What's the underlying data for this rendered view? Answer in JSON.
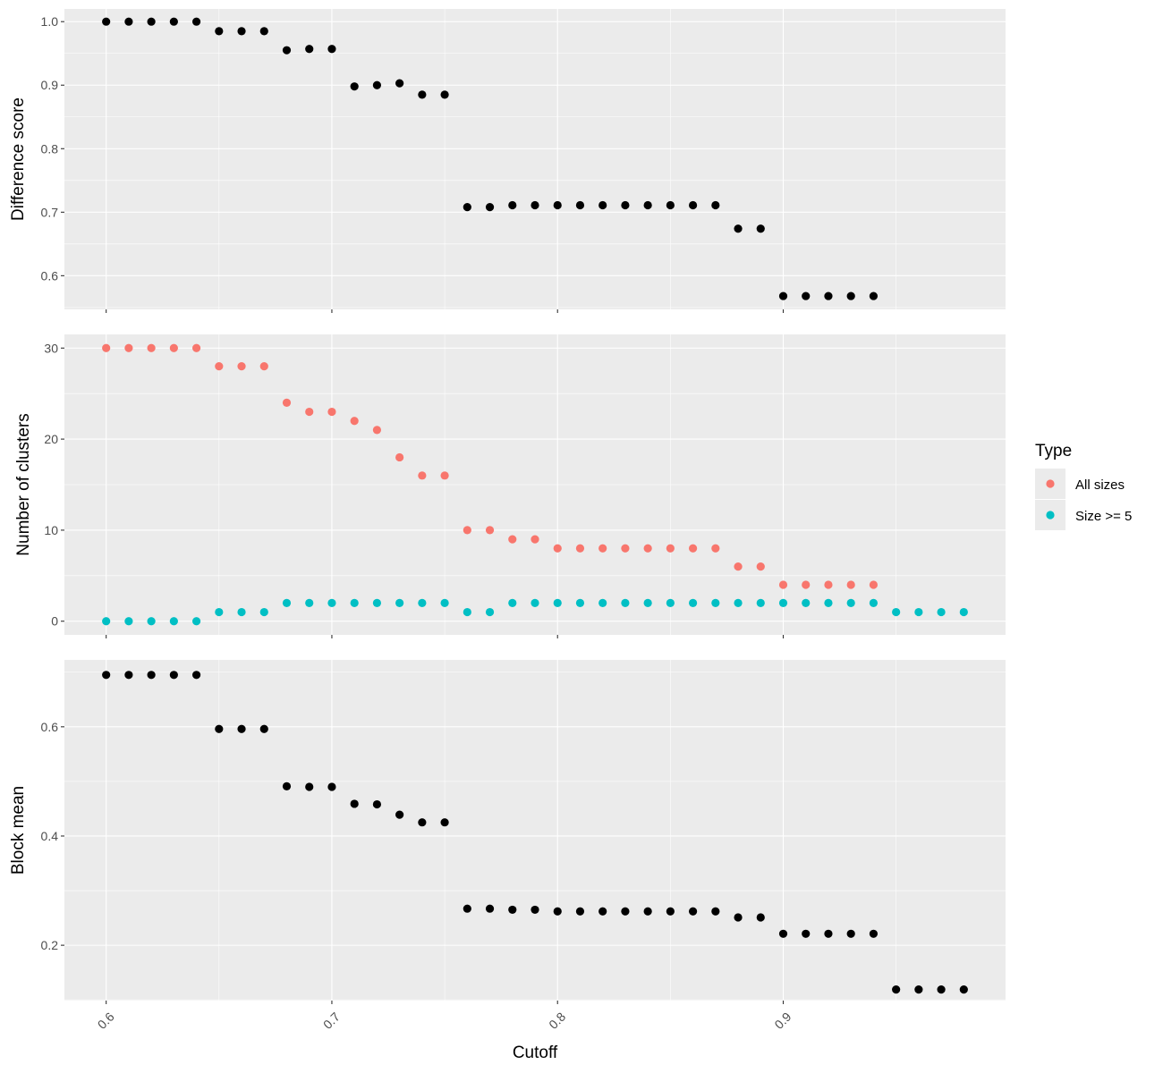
{
  "chart_data": {
    "type": "scatter",
    "xlabel": "Cutoff",
    "xlim": [
      0.5815,
      0.9985
    ],
    "x_ticks": [
      0.6,
      0.7,
      0.8,
      0.9
    ],
    "x_tick_labels": [
      "0.6",
      "0.7",
      "0.8",
      "0.9"
    ],
    "grid": true,
    "legend": {
      "title": "Type",
      "position": "right",
      "entries": [
        {
          "name": "All sizes",
          "color": "#F8766D"
        },
        {
          "name": "Size >= 5",
          "color": "#00BFC4"
        }
      ]
    },
    "panels": [
      {
        "id": "difference",
        "ylabel": "Difference score",
        "ylim": [
          0.547,
          1.02
        ],
        "y_ticks": [
          0.6,
          0.7,
          0.8,
          0.9,
          1.0
        ],
        "y_tick_labels": [
          "0.6",
          "0.7",
          "0.8",
          "0.9",
          "1.0"
        ],
        "series": [
          {
            "color": "#000000",
            "x": [
              0.6,
              0.61,
              0.62,
              0.63,
              0.64,
              0.65,
              0.66,
              0.67,
              0.68,
              0.69,
              0.7,
              0.71,
              0.72,
              0.73,
              0.74,
              0.75,
              0.76,
              0.77,
              0.78,
              0.79,
              0.8,
              0.81,
              0.82,
              0.83,
              0.84,
              0.85,
              0.86,
              0.87,
              0.88,
              0.89,
              0.9,
              0.91,
              0.92,
              0.93,
              0.94
            ],
            "y": [
              1.0,
              1.0,
              1.0,
              1.0,
              1.0,
              0.985,
              0.985,
              0.985,
              0.955,
              0.957,
              0.957,
              0.898,
              0.9,
              0.903,
              0.885,
              0.885,
              0.708,
              0.708,
              0.711,
              0.711,
              0.711,
              0.711,
              0.711,
              0.711,
              0.711,
              0.711,
              0.711,
              0.711,
              0.674,
              0.674,
              0.568,
              0.568,
              0.568,
              0.568,
              0.568
            ]
          }
        ]
      },
      {
        "id": "clusters",
        "ylabel": "Number of clusters",
        "ylim": [
          -1.5,
          31.5
        ],
        "y_ticks": [
          0,
          10,
          20,
          30
        ],
        "y_tick_labels": [
          "0",
          "10",
          "20",
          "30"
        ],
        "series": [
          {
            "name": "All sizes",
            "color": "#F8766D",
            "x": [
              0.6,
              0.61,
              0.62,
              0.63,
              0.64,
              0.65,
              0.66,
              0.67,
              0.68,
              0.69,
              0.7,
              0.71,
              0.72,
              0.73,
              0.74,
              0.75,
              0.76,
              0.77,
              0.78,
              0.79,
              0.8,
              0.81,
              0.82,
              0.83,
              0.84,
              0.85,
              0.86,
              0.87,
              0.88,
              0.89,
              0.9,
              0.91,
              0.92,
              0.93,
              0.94
            ],
            "y": [
              30,
              30,
              30,
              30,
              30,
              28,
              28,
              28,
              24,
              23,
              23,
              22,
              21,
              18,
              16,
              16,
              10,
              10,
              9,
              9,
              8,
              8,
              8,
              8,
              8,
              8,
              8,
              8,
              6,
              6,
              4,
              4,
              4,
              4,
              4
            ]
          },
          {
            "name": "Size >= 5",
            "color": "#00BFC4",
            "x": [
              0.6,
              0.61,
              0.62,
              0.63,
              0.64,
              0.65,
              0.66,
              0.67,
              0.68,
              0.69,
              0.7,
              0.71,
              0.72,
              0.73,
              0.74,
              0.75,
              0.76,
              0.77,
              0.78,
              0.79,
              0.8,
              0.81,
              0.82,
              0.83,
              0.84,
              0.85,
              0.86,
              0.87,
              0.88,
              0.89,
              0.9,
              0.91,
              0.92,
              0.93,
              0.94,
              0.95,
              0.96,
              0.97,
              0.98
            ],
            "y": [
              0,
              0,
              0,
              0,
              0,
              1,
              1,
              1,
              2,
              2,
              2,
              2,
              2,
              2,
              2,
              2,
              1,
              1,
              2,
              2,
              2,
              2,
              2,
              2,
              2,
              2,
              2,
              2,
              2,
              2,
              2,
              2,
              2,
              2,
              2,
              1,
              1,
              1,
              1
            ]
          }
        ]
      },
      {
        "id": "block",
        "ylabel": "Block mean",
        "ylim": [
          0.0987,
          0.7225
        ],
        "y_ticks": [
          0.2,
          0.4,
          0.6
        ],
        "y_tick_labels": [
          "0.2",
          "0.4",
          "0.6"
        ],
        "series": [
          {
            "color": "#000000",
            "x": [
              0.6,
              0.61,
              0.62,
              0.63,
              0.64,
              0.65,
              0.66,
              0.67,
              0.68,
              0.69,
              0.7,
              0.71,
              0.72,
              0.73,
              0.74,
              0.75,
              0.76,
              0.77,
              0.78,
              0.79,
              0.8,
              0.81,
              0.82,
              0.83,
              0.84,
              0.85,
              0.86,
              0.87,
              0.88,
              0.89,
              0.9,
              0.91,
              0.92,
              0.93,
              0.94,
              0.95,
              0.96,
              0.97,
              0.98
            ],
            "y": [
              0.695,
              0.695,
              0.695,
              0.695,
              0.695,
              0.596,
              0.596,
              0.596,
              0.491,
              0.49,
              0.49,
              0.459,
              0.458,
              0.439,
              0.425,
              0.425,
              0.267,
              0.267,
              0.265,
              0.265,
              0.262,
              0.262,
              0.262,
              0.262,
              0.262,
              0.262,
              0.262,
              0.262,
              0.251,
              0.251,
              0.221,
              0.221,
              0.221,
              0.221,
              0.221,
              0.119,
              0.119,
              0.119,
              0.119
            ]
          }
        ]
      }
    ]
  }
}
